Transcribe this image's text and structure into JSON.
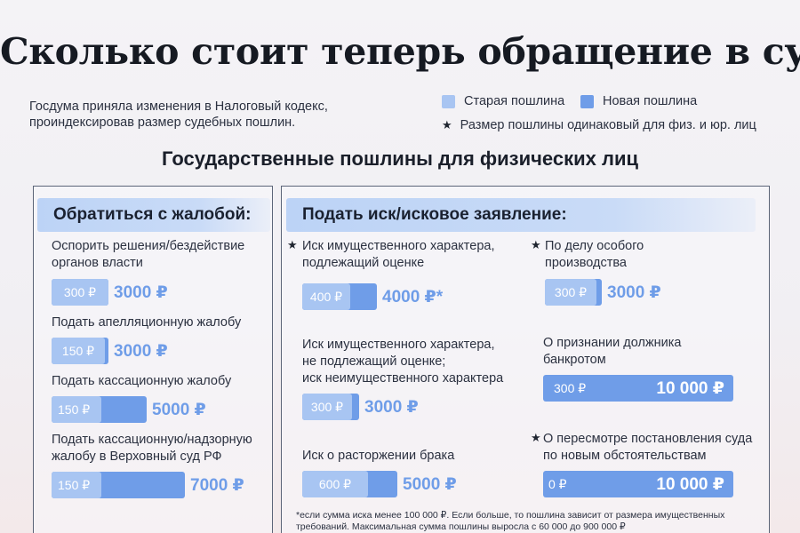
{
  "title": "Сколько стоит теперь обращение в суд",
  "intro": {
    "line1": "Госдума приняла изменения в Налоговый кодекс,",
    "line2": "проиндексировав размер судебных пошлин."
  },
  "legend": {
    "old_label": "Старая пошлина",
    "new_label": "Новая пошлина",
    "star_symbol": "★",
    "star_note": "Размер пошлины одинаковый для физ. и юр. лиц",
    "old_color": "#a8c5f2",
    "new_color": "#6f9de8"
  },
  "section_title": "Государственные пошлины для физических лиц",
  "left_panel": {
    "heading": "Обратиться с жалобой:",
    "items": [
      {
        "line1": "Оспорить решения/бездействие",
        "line2": "органов власти",
        "old": "300 ₽",
        "new": "3000 ₽",
        "old_value": 300,
        "new_value": 3000
      },
      {
        "line1": "Подать апелляционную жалобу",
        "line2": "",
        "old": "150 ₽",
        "new": "3000 ₽",
        "old_value": 150,
        "new_value": 3000
      },
      {
        "line1": "Подать кассационную жалобу",
        "line2": "",
        "old": "150 ₽",
        "new": "5000 ₽",
        "old_value": 150,
        "new_value": 5000
      },
      {
        "line1": "Подать кассационную/надзорную",
        "line2": "жалобу в Верховный суд РФ",
        "old": "150 ₽",
        "new": "7000 ₽",
        "old_value": 150,
        "new_value": 7000
      }
    ]
  },
  "right_panel": {
    "heading": "Подать иск/исковое заявление:",
    "col1": [
      {
        "star": "★",
        "line1": "Иск имущественного характера,",
        "line2": "подлежащий оценке",
        "line3": "",
        "old": "400 ₽",
        "new": "4000 ₽*",
        "old_value": 400,
        "new_value": 4000
      },
      {
        "star": "",
        "line1": "Иск имущественного характера,",
        "line2": "не подлежащий оценке;",
        "line3": "иск неимущественного характера",
        "old": "300 ₽",
        "new": "3000 ₽",
        "old_value": 300,
        "new_value": 3000
      },
      {
        "star": "",
        "line1": "Иск о расторжении брака",
        "line2": "",
        "line3": "",
        "old": "600 ₽",
        "new": "5000 ₽",
        "old_value": 600,
        "new_value": 5000
      }
    ],
    "col2": [
      {
        "star": "★",
        "line1": "По делу особого",
        "line2": "производства",
        "old": "300 ₽",
        "new": "3000 ₽",
        "old_value": 300,
        "new_value": 3000
      },
      {
        "star": "",
        "line1": "О признании должника",
        "line2": "банкротом",
        "old": "300 ₽",
        "new": "10 000 ₽",
        "old_value": 300,
        "new_value": 10000
      },
      {
        "star": "★",
        "line1": "О пересмотре постановления суда",
        "line2": "по новым обстоятельствам",
        "old": "0 ₽",
        "new": "10 000 ₽",
        "old_value": 0,
        "new_value": 10000
      }
    ]
  },
  "footnote": {
    "line1": "*если сумма иска менее 100 000 ₽.  Если больше, то пошлина зависит от размера имущественных",
    "line2": "требований. Максимальная сумма пошлины выросла с 60 000 до 900 000 ₽"
  }
}
